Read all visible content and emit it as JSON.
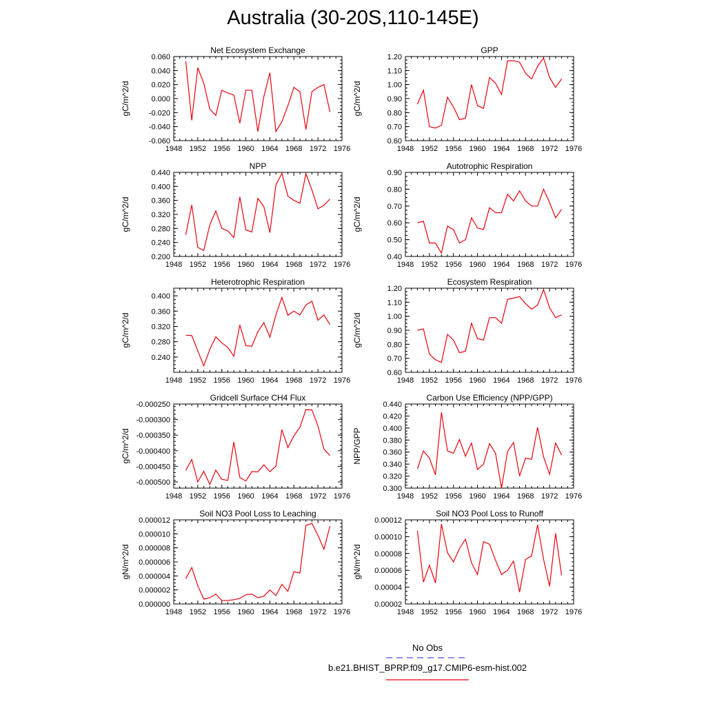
{
  "page": {
    "title": "Australia (30-20S,110-145E)"
  },
  "legend": {
    "entries": [
      {
        "label": "No Obs",
        "color": "#4b4bd6",
        "style": "dashed"
      },
      {
        "label": "b.e21.BHIST_BPRP.f09_g17.CMIP6-esm-hist.002",
        "color": "#e8000b",
        "style": "solid"
      }
    ]
  },
  "chart_data": [
    {
      "type": "line",
      "title": "Net Ecosystem Exchange",
      "ylabel": "gC/m^2/d",
      "xlim": [
        1948,
        1976
      ],
      "xticks": [
        1948,
        1952,
        1956,
        1960,
        1964,
        1968,
        1972,
        1976
      ],
      "ylim": [
        -0.06,
        0.06
      ],
      "yticks": [
        "-0.060",
        "-0.040",
        "-0.020",
        "0.000",
        "0.020",
        "0.040",
        "0.060"
      ],
      "x": [
        1950,
        1951,
        1952,
        1953,
        1954,
        1955,
        1956,
        1957,
        1958,
        1959,
        1960,
        1961,
        1962,
        1963,
        1964,
        1965,
        1966,
        1967,
        1968,
        1969,
        1970,
        1971,
        1972,
        1973,
        1974
      ],
      "series": [
        {
          "values": [
            0.053,
            -0.031,
            0.044,
            0.022,
            -0.015,
            -0.024,
            0.012,
            0.008,
            0.005,
            -0.035,
            0.012,
            0.012,
            -0.047,
            0.003,
            0.037,
            -0.047,
            -0.033,
            -0.01,
            0.016,
            0.01,
            -0.044,
            0.01,
            0.016,
            0.02,
            -0.019
          ],
          "color": "#e8000b"
        }
      ]
    },
    {
      "type": "line",
      "title": "GPP",
      "ylabel": "gC/m^2/d",
      "xlim": [
        1948,
        1976
      ],
      "xticks": [
        1948,
        1952,
        1956,
        1960,
        1964,
        1968,
        1972,
        1976
      ],
      "ylim": [
        0.6,
        1.2
      ],
      "yticks": [
        "0.60",
        "0.70",
        "0.80",
        "0.90",
        "1.00",
        "1.10",
        "1.20"
      ],
      "x": [
        1950,
        1951,
        1952,
        1953,
        1954,
        1955,
        1956,
        1957,
        1958,
        1959,
        1960,
        1961,
        1962,
        1963,
        1964,
        1965,
        1966,
        1967,
        1968,
        1969,
        1970,
        1971,
        1972,
        1973,
        1974
      ],
      "series": [
        {
          "values": [
            0.86,
            0.96,
            0.7,
            0.69,
            0.71,
            0.91,
            0.84,
            0.75,
            0.76,
            1.0,
            0.85,
            0.83,
            1.05,
            1.01,
            0.93,
            1.17,
            1.17,
            1.16,
            1.08,
            1.04,
            1.13,
            1.19,
            1.05,
            0.98,
            1.04
          ],
          "color": "#e8000b"
        }
      ]
    },
    {
      "type": "line",
      "title": "NPP",
      "ylabel": "gC/m^2/d",
      "xlim": [
        1948,
        1976
      ],
      "xticks": [
        1948,
        1952,
        1956,
        1960,
        1964,
        1968,
        1972,
        1976
      ],
      "ylim": [
        0.2,
        0.44
      ],
      "yticks": [
        "0.200",
        "0.240",
        "0.280",
        "0.320",
        "0.360",
        "0.400",
        "0.440"
      ],
      "x": [
        1950,
        1951,
        1952,
        1953,
        1954,
        1955,
        1956,
        1957,
        1958,
        1959,
        1960,
        1961,
        1962,
        1963,
        1964,
        1965,
        1966,
        1967,
        1968,
        1969,
        1970,
        1971,
        1972,
        1973,
        1974
      ],
      "series": [
        {
          "values": [
            0.262,
            0.347,
            0.226,
            0.217,
            0.29,
            0.33,
            0.28,
            0.273,
            0.254,
            0.37,
            0.276,
            0.27,
            0.366,
            0.342,
            0.268,
            0.404,
            0.437,
            0.372,
            0.36,
            0.352,
            0.436,
            0.39,
            0.336,
            0.346,
            0.364
          ],
          "color": "#e8000b"
        }
      ]
    },
    {
      "type": "line",
      "title": "Autotrophic Respiration",
      "ylabel": "gC/m^2/d",
      "xlim": [
        1948,
        1976
      ],
      "xticks": [
        1948,
        1952,
        1956,
        1960,
        1964,
        1968,
        1972,
        1976
      ],
      "ylim": [
        0.4,
        0.9
      ],
      "yticks": [
        "0.40",
        "0.50",
        "0.60",
        "0.70",
        "0.80",
        "0.90"
      ],
      "x": [
        1950,
        1951,
        1952,
        1953,
        1954,
        1955,
        1956,
        1957,
        1958,
        1959,
        1960,
        1961,
        1962,
        1963,
        1964,
        1965,
        1966,
        1967,
        1968,
        1969,
        1970,
        1971,
        1972,
        1973,
        1974
      ],
      "series": [
        {
          "values": [
            0.6,
            0.61,
            0.48,
            0.48,
            0.42,
            0.58,
            0.56,
            0.48,
            0.5,
            0.63,
            0.57,
            0.56,
            0.69,
            0.66,
            0.66,
            0.77,
            0.73,
            0.79,
            0.73,
            0.7,
            0.7,
            0.8,
            0.72,
            0.63,
            0.68
          ],
          "color": "#e8000b"
        }
      ]
    },
    {
      "type": "line",
      "title": "Heterotrophic Respiration",
      "ylabel": "gC/m^2/d",
      "xlim": [
        1948,
        1976
      ],
      "xticks": [
        1948,
        1952,
        1956,
        1960,
        1964,
        1968,
        1972,
        1976
      ],
      "ylim": [
        0.2,
        0.42
      ],
      "yticks": [
        "0.240",
        "0.280",
        "0.320",
        "0.360",
        "0.400"
      ],
      "x": [
        1950,
        1951,
        1952,
        1953,
        1954,
        1955,
        1956,
        1957,
        1958,
        1959,
        1960,
        1961,
        1962,
        1963,
        1964,
        1965,
        1966,
        1967,
        1968,
        1969,
        1970,
        1971,
        1972,
        1973,
        1974
      ],
      "series": [
        {
          "values": [
            0.297,
            0.296,
            0.256,
            0.217,
            0.26,
            0.293,
            0.277,
            0.265,
            0.242,
            0.324,
            0.27,
            0.268,
            0.306,
            0.33,
            0.292,
            0.35,
            0.396,
            0.349,
            0.36,
            0.35,
            0.376,
            0.386,
            0.336,
            0.35,
            0.325
          ],
          "color": "#e8000b"
        }
      ]
    },
    {
      "type": "line",
      "title": "Ecosystem Respiration",
      "ylabel": "gC/m^2/d",
      "xlim": [
        1948,
        1976
      ],
      "xticks": [
        1948,
        1952,
        1956,
        1960,
        1964,
        1968,
        1972,
        1976
      ],
      "ylim": [
        0.6,
        1.2
      ],
      "yticks": [
        "0.60",
        "0.70",
        "0.80",
        "0.90",
        "1.00",
        "1.10",
        "1.20"
      ],
      "x": [
        1950,
        1951,
        1952,
        1953,
        1954,
        1955,
        1956,
        1957,
        1958,
        1959,
        1960,
        1961,
        1962,
        1963,
        1964,
        1965,
        1966,
        1967,
        1968,
        1969,
        1970,
        1971,
        1972,
        1973,
        1974
      ],
      "series": [
        {
          "values": [
            0.9,
            0.91,
            0.73,
            0.69,
            0.67,
            0.87,
            0.83,
            0.74,
            0.75,
            0.95,
            0.84,
            0.83,
            0.99,
            0.99,
            0.95,
            1.12,
            1.13,
            1.14,
            1.09,
            1.05,
            1.08,
            1.19,
            1.06,
            0.99,
            1.01
          ],
          "color": "#e8000b"
        }
      ]
    },
    {
      "type": "line",
      "title": "Gridcell Surface CH4 Flux",
      "ylabel": "gC/m^2/d",
      "xlim": [
        1948,
        1976
      ],
      "xticks": [
        1948,
        1952,
        1956,
        1960,
        1964,
        1968,
        1972,
        1976
      ],
      "ylim": [
        -0.00052,
        -0.00025
      ],
      "yticks": [
        "-0.000500",
        "-0.000450",
        "-0.000400",
        "-0.000350",
        "-0.000300",
        "-0.000250"
      ],
      "x": [
        1950,
        1951,
        1952,
        1953,
        1954,
        1955,
        1956,
        1957,
        1958,
        1959,
        1960,
        1961,
        1962,
        1963,
        1964,
        1965,
        1966,
        1967,
        1968,
        1969,
        1970,
        1971,
        1972,
        1973,
        1974
      ],
      "series": [
        {
          "values": [
            -0.000463,
            -0.000428,
            -0.0005,
            -0.000466,
            -0.000508,
            -0.000462,
            -0.000492,
            -0.000495,
            -0.000372,
            -0.000486,
            -0.000497,
            -0.000467,
            -0.000468,
            -0.000445,
            -0.000467,
            -0.00045,
            -0.000332,
            -0.00039,
            -0.000352,
            -0.000325,
            -0.000268,
            -0.000269,
            -0.00032,
            -0.000395,
            -0.000415
          ],
          "color": "#e8000b"
        }
      ]
    },
    {
      "type": "line",
      "title": "Carbon Use Efficiency (NPP/GPP)",
      "ylabel": "NPP/GPP",
      "xlim": [
        1948,
        1976
      ],
      "xticks": [
        1948,
        1952,
        1956,
        1960,
        1964,
        1968,
        1972,
        1976
      ],
      "ylim": [
        0.3,
        0.44
      ],
      "yticks": [
        "0.300",
        "0.320",
        "0.340",
        "0.360",
        "0.380",
        "0.400",
        "0.420",
        "0.440"
      ],
      "x": [
        1950,
        1951,
        1952,
        1953,
        1954,
        1955,
        1956,
        1957,
        1958,
        1959,
        1960,
        1961,
        1962,
        1963,
        1964,
        1965,
        1966,
        1967,
        1968,
        1969,
        1970,
        1971,
        1972,
        1973,
        1974
      ],
      "series": [
        {
          "values": [
            0.332,
            0.362,
            0.35,
            0.322,
            0.426,
            0.362,
            0.358,
            0.381,
            0.353,
            0.375,
            0.331,
            0.34,
            0.374,
            0.358,
            0.3,
            0.361,
            0.376,
            0.32,
            0.35,
            0.348,
            0.401,
            0.352,
            0.323,
            0.375,
            0.355
          ],
          "color": "#e8000b"
        }
      ]
    },
    {
      "type": "line",
      "title": "Soil NO3 Pool Loss to Leaching",
      "ylabel": "gN/m^2/d",
      "xlim": [
        1948,
        1976
      ],
      "xticks": [
        1948,
        1952,
        1956,
        1960,
        1964,
        1968,
        1972,
        1976
      ],
      "ylim": [
        0,
        1.2e-05
      ],
      "yticks": [
        "0.000000",
        "0.000002",
        "0.000004",
        "0.000006",
        "0.000008",
        "0.000010",
        "0.000012"
      ],
      "x": [
        1950,
        1951,
        1952,
        1953,
        1954,
        1955,
        1956,
        1957,
        1958,
        1959,
        1960,
        1961,
        1962,
        1963,
        1964,
        1965,
        1966,
        1967,
        1968,
        1969,
        1970,
        1971,
        1972,
        1973,
        1974
      ],
      "series": [
        {
          "values": [
            3.6e-06,
            5.2e-06,
            2.6e-06,
            7e-07,
            9e-07,
            1.4e-06,
            5e-07,
            5e-07,
            6e-07,
            8e-07,
            1.3e-06,
            1.4e-06,
            9e-07,
            1.1e-06,
            2e-06,
            1.2e-06,
            2.8e-06,
            1.8e-06,
            4.6e-06,
            4.4e-06,
            1.12e-05,
            1.15e-05,
            9.8e-06,
            7.8e-06,
            1.11e-05
          ],
          "color": "#e8000b"
        }
      ]
    },
    {
      "type": "line",
      "title": "Soil NO3 Pool Loss to Runoff",
      "ylabel": "gN/m^2/d",
      "xlim": [
        1948,
        1976
      ],
      "xticks": [
        1948,
        1952,
        1956,
        1960,
        1964,
        1968,
        1972,
        1976
      ],
      "ylim": [
        2e-05,
        0.00012
      ],
      "yticks": [
        "0.00002",
        "0.00004",
        "0.00006",
        "0.00008",
        "0.00010",
        "0.00012"
      ],
      "x": [
        1950,
        1951,
        1952,
        1953,
        1954,
        1955,
        1956,
        1957,
        1958,
        1959,
        1960,
        1961,
        1962,
        1963,
        1964,
        1965,
        1966,
        1967,
        1968,
        1969,
        1970,
        1971,
        1972,
        1973,
        1974
      ],
      "series": [
        {
          "values": [
            0.000107,
            4.6e-05,
            6.6e-05,
            4.5e-05,
            0.000115,
            8.1e-05,
            7e-05,
            8.6e-05,
            9.7e-05,
            6.9e-05,
            5.5e-05,
            9.4e-05,
            9.1e-05,
            7.2e-05,
            5.5e-05,
            6e-05,
            7.1e-05,
            3.4e-05,
            7.3e-05,
            7.7e-05,
            0.000114,
            7.3e-05,
            4.1e-05,
            0.000104,
            5.4e-05
          ],
          "color": "#e8000b"
        }
      ]
    }
  ]
}
